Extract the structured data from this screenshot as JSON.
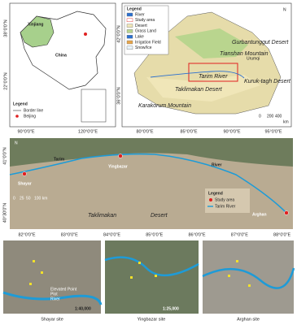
{
  "panel_a": {
    "region": "Xinjiang",
    "country": "China",
    "legend_title": "Legend",
    "legend": [
      "Border line",
      "Beijing"
    ],
    "lat_ticks": [
      "38°0'0\"N",
      "22°0'0\"N"
    ],
    "lon_ticks": [
      "90°0'0\"E",
      "120°0'0\"E"
    ]
  },
  "panel_b": {
    "legend_title": "Legend",
    "legend": [
      "River",
      "Study area",
      "Desert",
      "Grass Land",
      "Lake",
      "Irrigation Field",
      "Snow/Ice"
    ],
    "places": [
      "Gurbantunggut Desert",
      "Tianshan Mountain",
      "Urumqi",
      "Tarim River",
      "Taklimakan Desert",
      "Kuruk-tagh Desert",
      "Karakorum Mountain"
    ],
    "north": "N",
    "scale": [
      "0",
      "200",
      "400",
      "km"
    ],
    "lat_ticks": [
      "42°0'0\"N",
      "36°0'0\"N"
    ],
    "lon_ticks": [
      "80°0'0\"E",
      "85°0'0\"E",
      "90°0'0\"E",
      "95°0'0\"E"
    ]
  },
  "panel_c": {
    "places": [
      "Shayar",
      "Tarim",
      "Yingbazar",
      "River",
      "Taklimakan",
      "Desert",
      "Arghan"
    ],
    "legend_title": "Legend",
    "legend": [
      "Study area",
      "Tarim River"
    ],
    "north": "N",
    "scale": [
      "0",
      "25",
      "50",
      "100 km"
    ],
    "lat_ticks": [
      "41°0'0\"N",
      "40°30'0\"N"
    ],
    "lon_ticks": [
      "82°0'0\"E",
      "83°0'0\"E",
      "84°0'0\"E",
      "85°0'0\"E",
      "86°0'0\"E",
      "87°0'0\"E",
      "88°0'0\"E"
    ]
  },
  "sites": [
    {
      "name": "Shayar site",
      "scale": "1:40,000",
      "legend": [
        "Elevated Point",
        "Plot",
        "River"
      ]
    },
    {
      "name": "Yingbazar site",
      "scale": "1:25,000"
    },
    {
      "name": "Arghan site"
    }
  ]
}
